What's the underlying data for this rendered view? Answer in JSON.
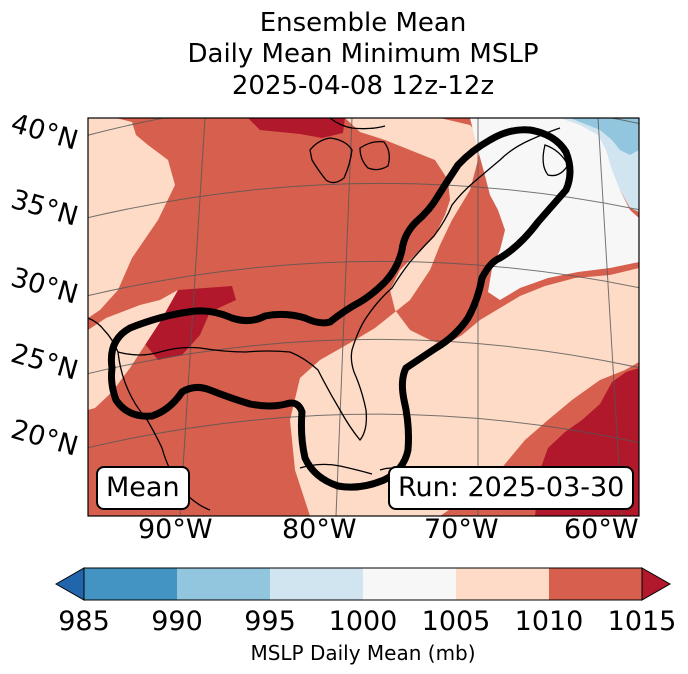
{
  "title": {
    "line1": "Ensemble Mean",
    "line2": "Daily Mean Minimum MSLP",
    "line3": "2025-04-08 12z-12z"
  },
  "map": {
    "lat_labels": [
      "40°N",
      "35°N",
      "30°N",
      "25°N",
      "20°N"
    ],
    "lon_labels": [
      "90°W",
      "80°W",
      "70°W",
      "60°W"
    ],
    "mean_label": "Mean",
    "run_label": "Run: 2025-03-30",
    "contour_color": "#000000"
  },
  "colorbar": {
    "ticks": [
      "985",
      "990",
      "995",
      "1000",
      "1005",
      "1010",
      "1015"
    ],
    "label": "MSLP Daily Mean (mb)",
    "colors": [
      "#2166ac",
      "#4393c3",
      "#92c5de",
      "#d1e5f0",
      "#f7f7f7",
      "#fddbc7",
      "#d6604d",
      "#b2182b"
    ]
  }
}
